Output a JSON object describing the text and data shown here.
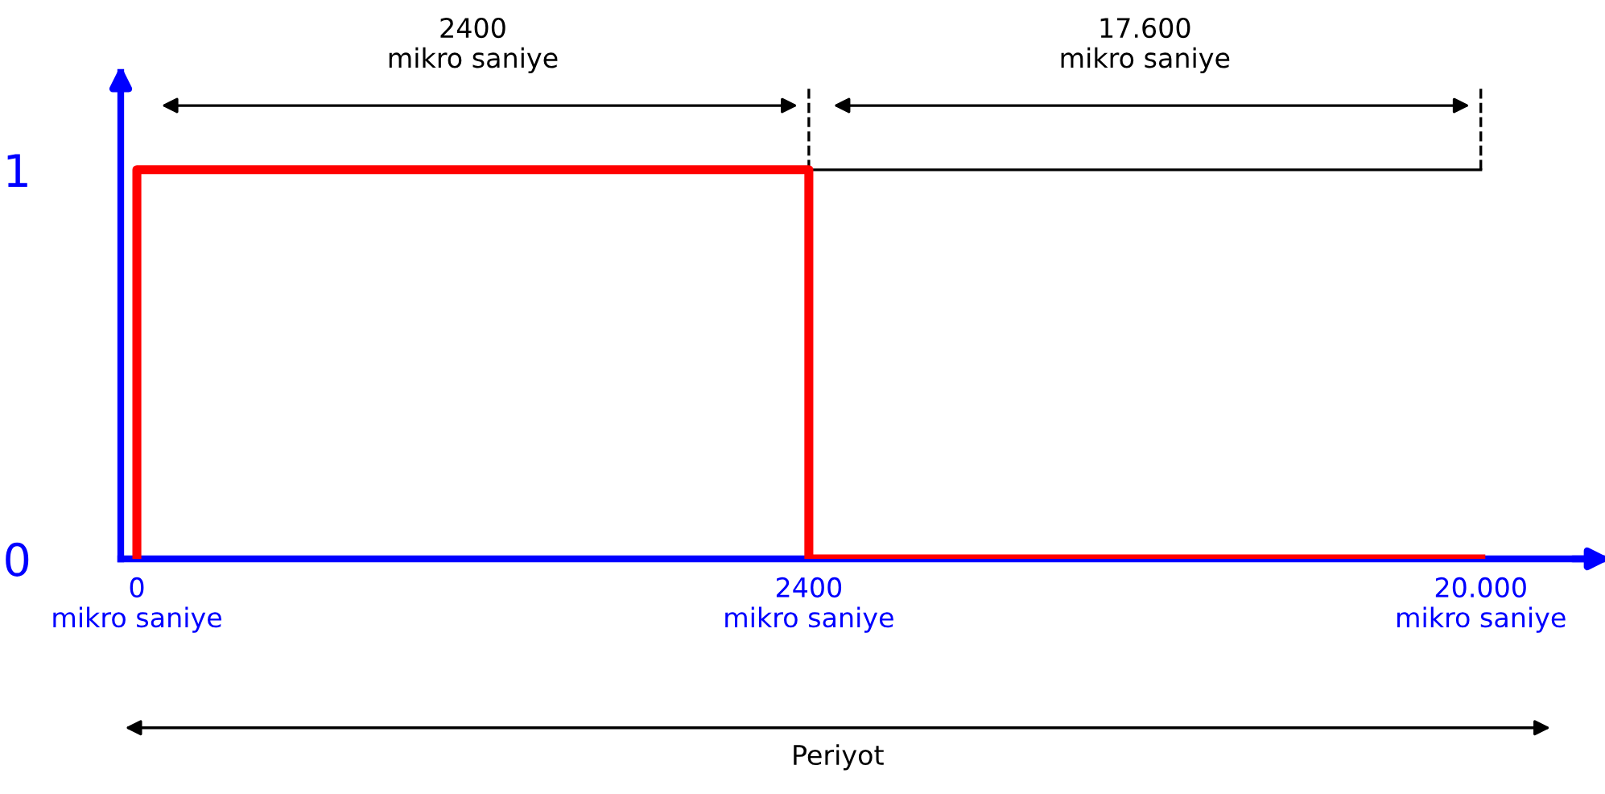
{
  "chart_data": {
    "type": "line",
    "categories": [
      "0\nmikro saniye",
      "2400\nmikro saniye",
      "20.000\nmikro saniye"
    ],
    "series": [
      {
        "color": "#ff0000",
        "x": [
          "0\nmikro saniye",
          "0\nmikro saniye",
          "2400\nmikro saniye",
          "2400\nmikro saniye",
          "20.000\nmikro saniye"
        ],
        "values": [
          0,
          1,
          1,
          0,
          0
        ]
      },
      {
        "color": "#000000",
        "values": [
          null,
          1,
          1
        ]
      }
    ],
    "ylim": [
      0,
      1.25
    ],
    "yticks": [
      0,
      1
    ],
    "grid": false,
    "annotations": [
      "2400\nmikro saniye",
      "17.600\nmikro saniye",
      "Periyot"
    ]
  }
}
